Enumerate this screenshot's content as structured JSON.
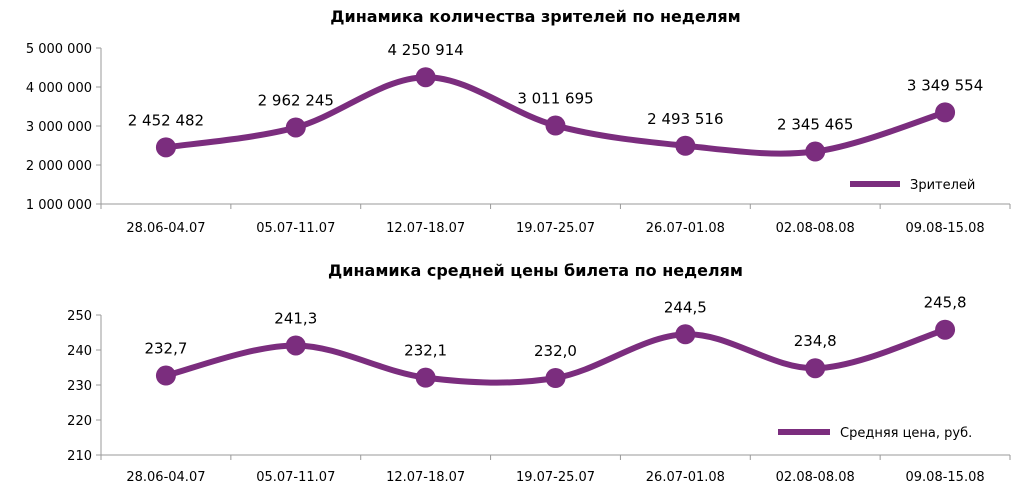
{
  "chart_data": [
    {
      "type": "line",
      "title": "Динамика количества зрителей по неделям",
      "categories": [
        "28.06-04.07",
        "05.07-11.07",
        "12.07-18.07",
        "19.07-25.07",
        "26.07-01.08",
        "02.08-08.08",
        "09.08-15.08"
      ],
      "series": [
        {
          "name": "Зрителей",
          "values": [
            2452482,
            2962245,
            4250914,
            3011695,
            2493516,
            2345465,
            3349554
          ]
        }
      ],
      "data_labels": [
        "2 452 482",
        "2 962 245",
        "4 250 914",
        "3 011 695",
        "2 493 516",
        "2 345 465",
        "3 349 554"
      ],
      "ylim": [
        1000000,
        5000000
      ],
      "yticks": [
        1000000,
        2000000,
        3000000,
        4000000,
        5000000
      ],
      "ytick_labels": [
        "1 000 000",
        "2 000 000",
        "3 000 000",
        "4 000 000",
        "5 000 000"
      ],
      "grid": false,
      "smooth": true,
      "legend": "bottom-right",
      "color": "#7b2d7e"
    },
    {
      "type": "line",
      "title": "Динамика средней цены билета по неделям",
      "categories": [
        "28.06-04.07",
        "05.07-11.07",
        "12.07-18.07",
        "19.07-25.07",
        "26.07-01.08",
        "02.08-08.08",
        "09.08-15.08"
      ],
      "series": [
        {
          "name": "Средняя цена, руб.",
          "values": [
            232.7,
            241.3,
            232.1,
            232.0,
            244.5,
            234.8,
            245.8
          ]
        }
      ],
      "data_labels": [
        "232,7",
        "241,3",
        "232,1",
        "232,0",
        "244,5",
        "234,8",
        "245,8"
      ],
      "ylim": [
        210,
        250
      ],
      "yticks": [
        210,
        220,
        230,
        240,
        250
      ],
      "ytick_labels": [
        "210",
        "220",
        "230",
        "240",
        "250"
      ],
      "grid": false,
      "smooth": true,
      "legend": "bottom-right",
      "color": "#7b2d7e"
    }
  ]
}
